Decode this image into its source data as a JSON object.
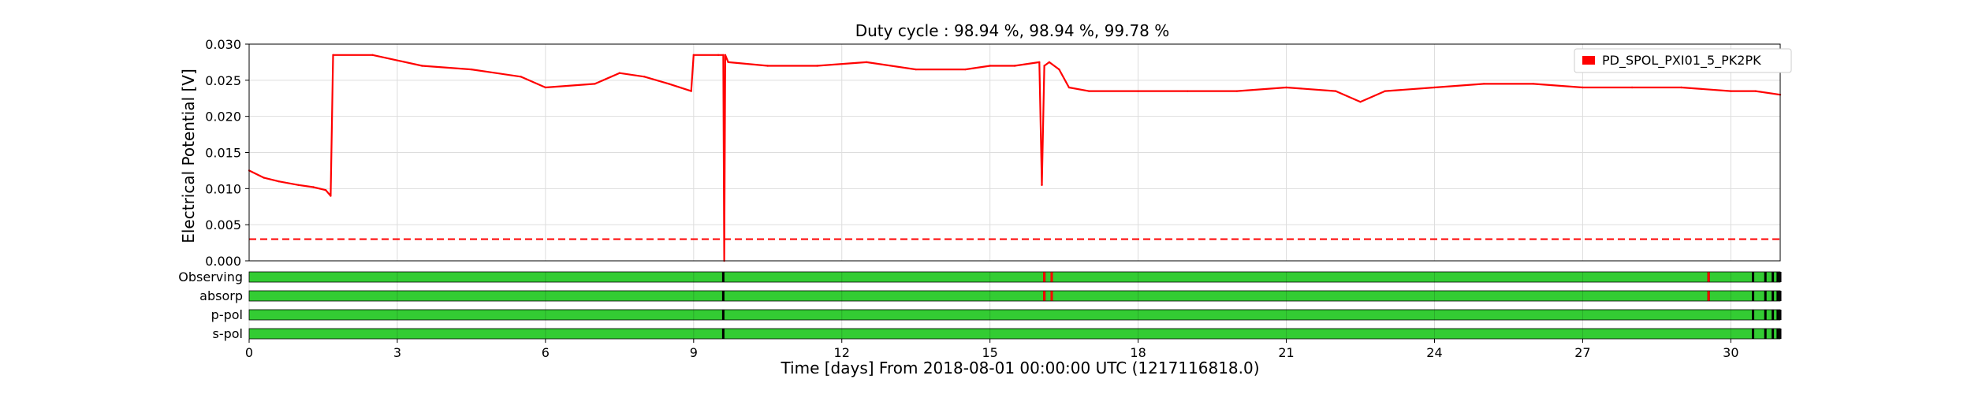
{
  "chart_data": {
    "type": "line",
    "title": "Duty cycle : 98.94 %, 98.94 %, 99.78 %",
    "xlabel": "Time [days] From 2018-08-01 00:00:00 UTC (1217116818.0)",
    "ylabel": "Electrical Potential [V]",
    "xlim": [
      0,
      31
    ],
    "ylim": [
      0,
      0.03
    ],
    "x_ticks": [
      0,
      3,
      6,
      9,
      12,
      15,
      18,
      21,
      24,
      27,
      30
    ],
    "x_tick_labels": [
      "0",
      "3",
      "6",
      "9",
      "12",
      "15",
      "18",
      "21",
      "24",
      "27",
      "30"
    ],
    "y_ticks": [
      0,
      0.005,
      0.01,
      0.015,
      0.02,
      0.025,
      0.03
    ],
    "y_tick_labels": [
      "0.000",
      "0.005",
      "0.010",
      "0.015",
      "0.020",
      "0.025",
      "0.030"
    ],
    "grid": true,
    "legend_position": "top-right",
    "series": [
      {
        "name": "PD_SPOL_PXI01_5_PK2PK",
        "color": "#ff0000",
        "x": [
          0,
          0.3,
          0.6,
          1.0,
          1.3,
          1.55,
          1.65,
          1.7,
          2.5,
          3.5,
          4.5,
          5.5,
          6.0,
          7.0,
          7.5,
          8.0,
          8.5,
          8.95,
          9.0,
          9.5,
          9.6,
          9.62,
          9.64,
          9.7,
          10.5,
          11.5,
          12.5,
          13.5,
          14.5,
          15.0,
          15.5,
          16.0,
          16.05,
          16.1,
          16.2,
          16.4,
          16.6,
          17.0,
          18.0,
          19.0,
          20.0,
          21.0,
          22.0,
          22.5,
          23.0,
          24.0,
          25.0,
          26.0,
          27.0,
          28.0,
          29.0,
          30.0,
          30.5,
          31.0
        ],
        "y": [
          0.0125,
          0.0115,
          0.011,
          0.0105,
          0.0102,
          0.0098,
          0.009,
          0.0285,
          0.0285,
          0.027,
          0.0265,
          0.0255,
          0.024,
          0.0245,
          0.026,
          0.0255,
          0.0245,
          0.0235,
          0.0285,
          0.0285,
          0.0285,
          0.0,
          0.0285,
          0.0275,
          0.027,
          0.027,
          0.0275,
          0.0265,
          0.0265,
          0.027,
          0.027,
          0.0275,
          0.0105,
          0.027,
          0.0275,
          0.0265,
          0.024,
          0.0235,
          0.0235,
          0.0235,
          0.0235,
          0.024,
          0.0235,
          0.022,
          0.0235,
          0.024,
          0.0245,
          0.0245,
          0.024,
          0.024,
          0.024,
          0.0235,
          0.0235,
          0.023
        ]
      },
      {
        "name": "",
        "color": "#ff0000",
        "style": "dashed",
        "x": [
          0,
          31
        ],
        "y": [
          0.003,
          0.003
        ]
      }
    ],
    "state_bars": [
      {
        "label": "Observing",
        "off": [
          9.6,
          16.1,
          16.25,
          29.55,
          30.45,
          30.7,
          30.85,
          30.95,
          31.0
        ],
        "bad": [
          16.1,
          16.25,
          29.55
        ]
      },
      {
        "label": "absorp",
        "off": [
          9.6,
          16.1,
          16.25,
          29.55,
          30.45,
          30.7,
          30.85,
          30.95,
          31.0
        ],
        "bad": [
          16.1,
          16.25,
          29.55
        ]
      },
      {
        "label": "p-pol",
        "off": [
          9.6,
          30.45,
          30.7,
          30.85,
          30.95,
          31.0
        ],
        "bad": []
      },
      {
        "label": "s-pol",
        "off": [
          9.6,
          30.45,
          30.7,
          30.85,
          30.95,
          31.0
        ],
        "bad": []
      }
    ],
    "colors": {
      "on": "#33cc33",
      "off": "#000000",
      "bad": "#ff0000"
    }
  }
}
